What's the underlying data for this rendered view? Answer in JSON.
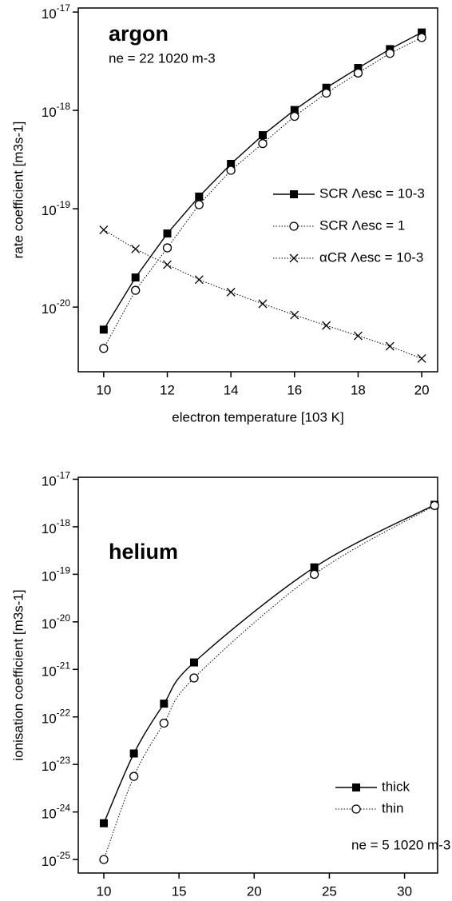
{
  "chart_data": [
    {
      "type": "line",
      "title": "argon",
      "annotation": "ne = 22 1020 m-3",
      "xlabel": "electron temperature [103 K]",
      "ylabel": "rate coefficient [m3s-1]",
      "x": [
        10,
        11,
        12,
        13,
        14,
        15,
        16,
        17,
        18,
        19,
        20
      ],
      "series": [
        {
          "name": "SCR Λesc = 10-3",
          "color": "#000000",
          "line": "solid",
          "marker": "square",
          "values": [
            5.9e-21,
            2e-20,
            5.6e-20,
            1.33e-19,
            2.86e-19,
            5.6e-19,
            1.01e-18,
            1.7e-18,
            2.7e-18,
            4.2e-18,
            6.2e-18
          ]
        },
        {
          "name": "SCR Λesc = 1",
          "color": "#000000",
          "line": "dotted",
          "marker": "circle",
          "values": [
            3.8e-21,
            1.48e-20,
            4e-20,
            1.1e-19,
            2.46e-19,
            4.6e-19,
            8.7e-19,
            1.5e-18,
            2.4e-18,
            3.8e-18,
            5.5e-18
          ]
        },
        {
          "name": "αCR Λesc = 10-3",
          "color": "#000000",
          "line": "dotted",
          "marker": "x",
          "values": [
            6.1e-20,
            3.9e-20,
            2.7e-20,
            1.9e-20,
            1.42e-20,
            1.08e-20,
            8.3e-21,
            6.5e-21,
            5.1e-21,
            4e-21,
            3e-21
          ]
        }
      ],
      "xlim": [
        9.2,
        20.5
      ],
      "xticks": [
        10,
        12,
        14,
        16,
        18,
        20
      ],
      "ylim": [
        2.2e-21,
        1.1e-17
      ],
      "ylog": true,
      "yticks": [
        {
          "value": 1e-20,
          "label": "10-20"
        },
        {
          "value": 1e-19,
          "label": "10-19"
        },
        {
          "value": 1e-18,
          "label": "10-18"
        },
        {
          "value": 1e-17,
          "label": "10-17"
        }
      ],
      "smooth": false,
      "legend": "right"
    },
    {
      "type": "line",
      "title": "helium",
      "annotation": "ne = 5 1020 m-3",
      "xlabel": "electron temperature [103 K]",
      "ylabel": "ionisation coefficient [m3s-1]",
      "x": [
        10,
        12,
        14,
        16,
        24,
        32
      ],
      "series": [
        {
          "name": "thick",
          "color": "#000000",
          "line": "solid",
          "marker": "square",
          "values": [
            5.8e-25,
            1.7e-23,
            1.9e-22,
            1.4e-21,
            1.4e-19,
            2.9e-18
          ]
        },
        {
          "name": "thin",
          "color": "#000000",
          "line": "dotted",
          "marker": "circle",
          "values": [
            1e-25,
            5.6e-24,
            7.4e-23,
            6.6e-22,
            1e-19,
            2.8e-18
          ]
        }
      ],
      "xlim": [
        8.3,
        32.2
      ],
      "xticks": [
        10,
        15,
        20,
        25,
        30
      ],
      "ylim": [
        5.2e-26,
        1.1e-17
      ],
      "ylog": true,
      "yticks": [
        {
          "value": 1e-25,
          "label": "10-25"
        },
        {
          "value": 1e-24,
          "label": "10-24"
        },
        {
          "value": 1e-23,
          "label": "10-23"
        },
        {
          "value": 1e-22,
          "label": "10-22"
        },
        {
          "value": 1e-21,
          "label": "10-21"
        },
        {
          "value": 1e-20,
          "label": "10-20"
        },
        {
          "value": 1e-19,
          "label": "10-19"
        },
        {
          "value": 1e-18,
          "label": "10-18"
        },
        {
          "value": 1e-17,
          "label": "10-17"
        }
      ],
      "smooth": true,
      "legend": "lower right"
    }
  ]
}
